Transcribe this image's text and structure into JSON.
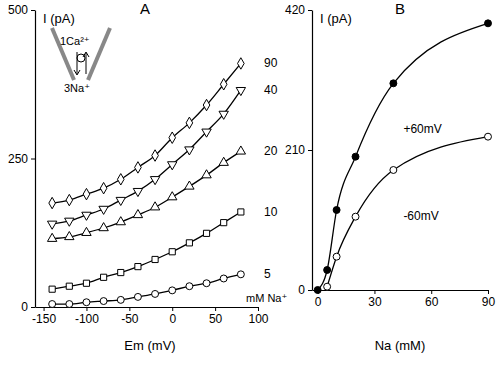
{
  "chart_data": [
    {
      "type": "line",
      "title": "A",
      "xlabel": "Em (mV)",
      "ylabel": "I (pA)",
      "x": [
        -140,
        -120,
        -100,
        -80,
        -60,
        -40,
        -20,
        0,
        20,
        40,
        60,
        80
      ],
      "series": [
        {
          "name": "5",
          "color": "#000000",
          "marker": "circle",
          "line_style": "solid",
          "values": [
            5,
            5,
            8,
            10,
            12,
            17,
            22,
            28,
            35,
            40,
            48,
            55
          ]
        },
        {
          "name": "10",
          "color": "#000000",
          "marker": "square",
          "line_style": "solid",
          "values": [
            30,
            35,
            40,
            50,
            58,
            68,
            80,
            93,
            108,
            124,
            142,
            160
          ]
        },
        {
          "name": "20",
          "color": "#000000",
          "marker": "triangle-up",
          "line_style": "solid",
          "values": [
            115,
            118,
            125,
            133,
            143,
            155,
            168,
            185,
            203,
            222,
            243,
            262
          ]
        },
        {
          "name": "40",
          "color": "#000000",
          "marker": "triangle-down",
          "line_style": "solid",
          "values": [
            140,
            145,
            155,
            165,
            180,
            195,
            215,
            240,
            265,
            295,
            325,
            365
          ]
        },
        {
          "name": "90",
          "color": "#000000",
          "marker": "diamond",
          "line_style": "solid",
          "values": [
            175,
            180,
            190,
            200,
            215,
            235,
            255,
            285,
            310,
            340,
            375,
            410
          ]
        }
      ],
      "xlim": [
        -160,
        100
      ],
      "xticks": [
        -150,
        -100,
        -50,
        0,
        50,
        100
      ],
      "ylim": [
        0,
        500
      ],
      "yticks": [
        0,
        250,
        500
      ],
      "annotations": [
        "1Ca²⁺",
        "3Na⁺",
        "mM Na⁺"
      ]
    },
    {
      "type": "line",
      "title": "B",
      "xlabel": "Na (mM)",
      "ylabel": "I (pA)",
      "x": [
        0,
        5,
        10,
        20,
        40,
        90
      ],
      "series": [
        {
          "name": "+60mV",
          "color": "#000000",
          "marker": "filled-circle",
          "line_style": "solid",
          "values": [
            0,
            30,
            120,
            200,
            310,
            400
          ]
        },
        {
          "name": "-60mV",
          "color": "#000000",
          "marker": "circle",
          "line_style": "solid",
          "values": [
            null,
            5,
            50,
            110,
            180,
            230
          ]
        }
      ],
      "xlim": [
        -3,
        90
      ],
      "xticks": [
        0,
        30,
        60,
        90
      ],
      "ylim": [
        0,
        420
      ],
      "yticks": [
        0,
        210,
        420
      ]
    }
  ]
}
